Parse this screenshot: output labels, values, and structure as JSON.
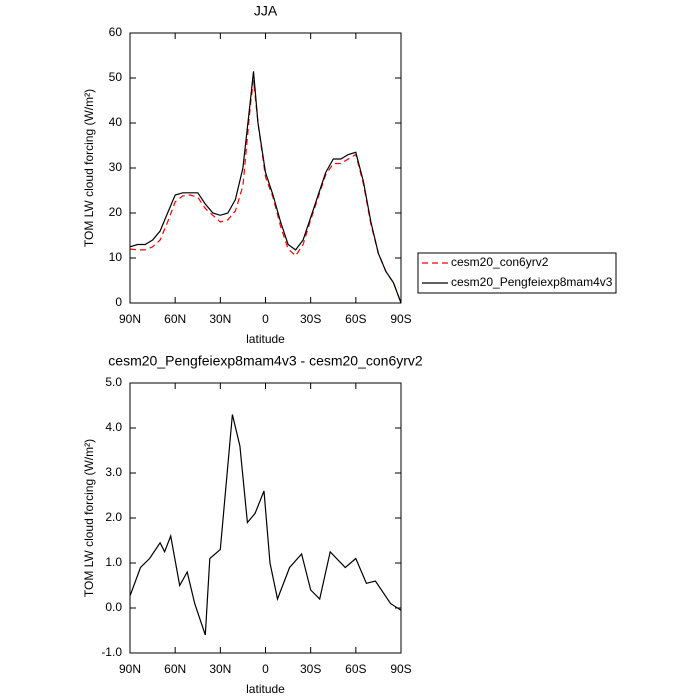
{
  "chart_data": [
    {
      "type": "line",
      "title": "JJA",
      "xlabel": "latitude",
      "ylabel": "TOM LW cloud forcing (W/m²)",
      "x": [
        90,
        85,
        80,
        75,
        70,
        65,
        60,
        55,
        50,
        45,
        40,
        35,
        30,
        25,
        20,
        15,
        10,
        8,
        5,
        0,
        -5,
        -10,
        -15,
        -20,
        -25,
        -30,
        -35,
        -40,
        -45,
        -50,
        -55,
        -60,
        -65,
        -70,
        -75,
        -80,
        -85,
        -90
      ],
      "series": [
        {
          "name": "cesm20_con6yrv2",
          "color": "#ff0000",
          "dash": true,
          "values": [
            12,
            11.8,
            11.8,
            12.5,
            14,
            18,
            22.5,
            23.8,
            24,
            23.5,
            21,
            19.5,
            18,
            18.5,
            20.5,
            26,
            44,
            49.5,
            40,
            28,
            23.5,
            17,
            12,
            10.5,
            13,
            18.5,
            23.5,
            28.5,
            31,
            31,
            32,
            33,
            26.5,
            17.5,
            11,
            7,
            4.5,
            0
          ]
        },
        {
          "name": "cesm20_Pengfeiexp8mam4v3",
          "color": "#000000",
          "dash": false,
          "values": [
            12.5,
            13,
            13,
            14,
            16,
            20,
            24,
            24.5,
            24.5,
            24.5,
            22,
            20,
            19.5,
            20,
            23,
            30,
            45,
            51.5,
            40,
            29,
            24,
            18,
            13,
            11.8,
            14,
            19,
            24,
            29,
            32,
            32,
            33,
            33.5,
            27,
            18,
            11,
            7,
            4.5,
            0
          ]
        }
      ],
      "xlim": [
        90,
        -90
      ],
      "xticks": [
        {
          "value": 90,
          "label": "90N"
        },
        {
          "value": 60,
          "label": "60N"
        },
        {
          "value": 30,
          "label": "30N"
        },
        0,
        {
          "value": -30,
          "label": "30S"
        },
        {
          "value": -60,
          "label": "60S"
        },
        {
          "value": -90,
          "label": "90S"
        }
      ],
      "ylim": [
        0,
        60
      ],
      "yticks": [
        0,
        10,
        20,
        30,
        40,
        50,
        60
      ],
      "legend": "outside-right"
    },
    {
      "type": "line",
      "title": "cesm20_Pengfeiexp8mam4v3 - cesm20_con6yrv2",
      "xlabel": "latitude",
      "ylabel": "TOM LW cloud forcing (W/m²)",
      "x": [
        90,
        83,
        77,
        70,
        67,
        63,
        57,
        52,
        47,
        40,
        37,
        30,
        22,
        17,
        12,
        7,
        1,
        -3,
        -8,
        -16,
        -24,
        -30,
        -36,
        -43,
        -53,
        -60,
        -67,
        -73,
        -83,
        -90
      ],
      "values": [
        0.27,
        0.9,
        1.1,
        1.45,
        1.25,
        1.6,
        0.5,
        0.8,
        0.1,
        -0.6,
        1.1,
        1.3,
        4.3,
        3.6,
        1.9,
        2.1,
        2.6,
        1.0,
        0.2,
        0.9,
        1.2,
        0.4,
        0.2,
        1.25,
        0.9,
        1.1,
        0.55,
        0.6,
        0.1,
        -0.05
      ],
      "color": "#000000",
      "xlim": [
        90,
        -90
      ],
      "xticks": [
        {
          "value": 90,
          "label": "90N"
        },
        {
          "value": 60,
          "label": "60N"
        },
        {
          "value": 30,
          "label": "30N"
        },
        0,
        {
          "value": -30,
          "label": "30S"
        },
        {
          "value": -60,
          "label": "60S"
        },
        {
          "value": -90,
          "label": "90S"
        }
      ],
      "ylim": [
        -1,
        5
      ],
      "yticks": [
        {
          "value": -1,
          "label": "-1.0"
        },
        {
          "value": 0,
          "label": "0.0"
        },
        {
          "value": 1,
          "label": "1.0"
        },
        {
          "value": 2,
          "label": "2.0"
        },
        {
          "value": 3,
          "label": "3.0"
        },
        {
          "value": 4,
          "label": "4.0"
        },
        {
          "value": 5,
          "label": "5.0"
        }
      ]
    }
  ]
}
